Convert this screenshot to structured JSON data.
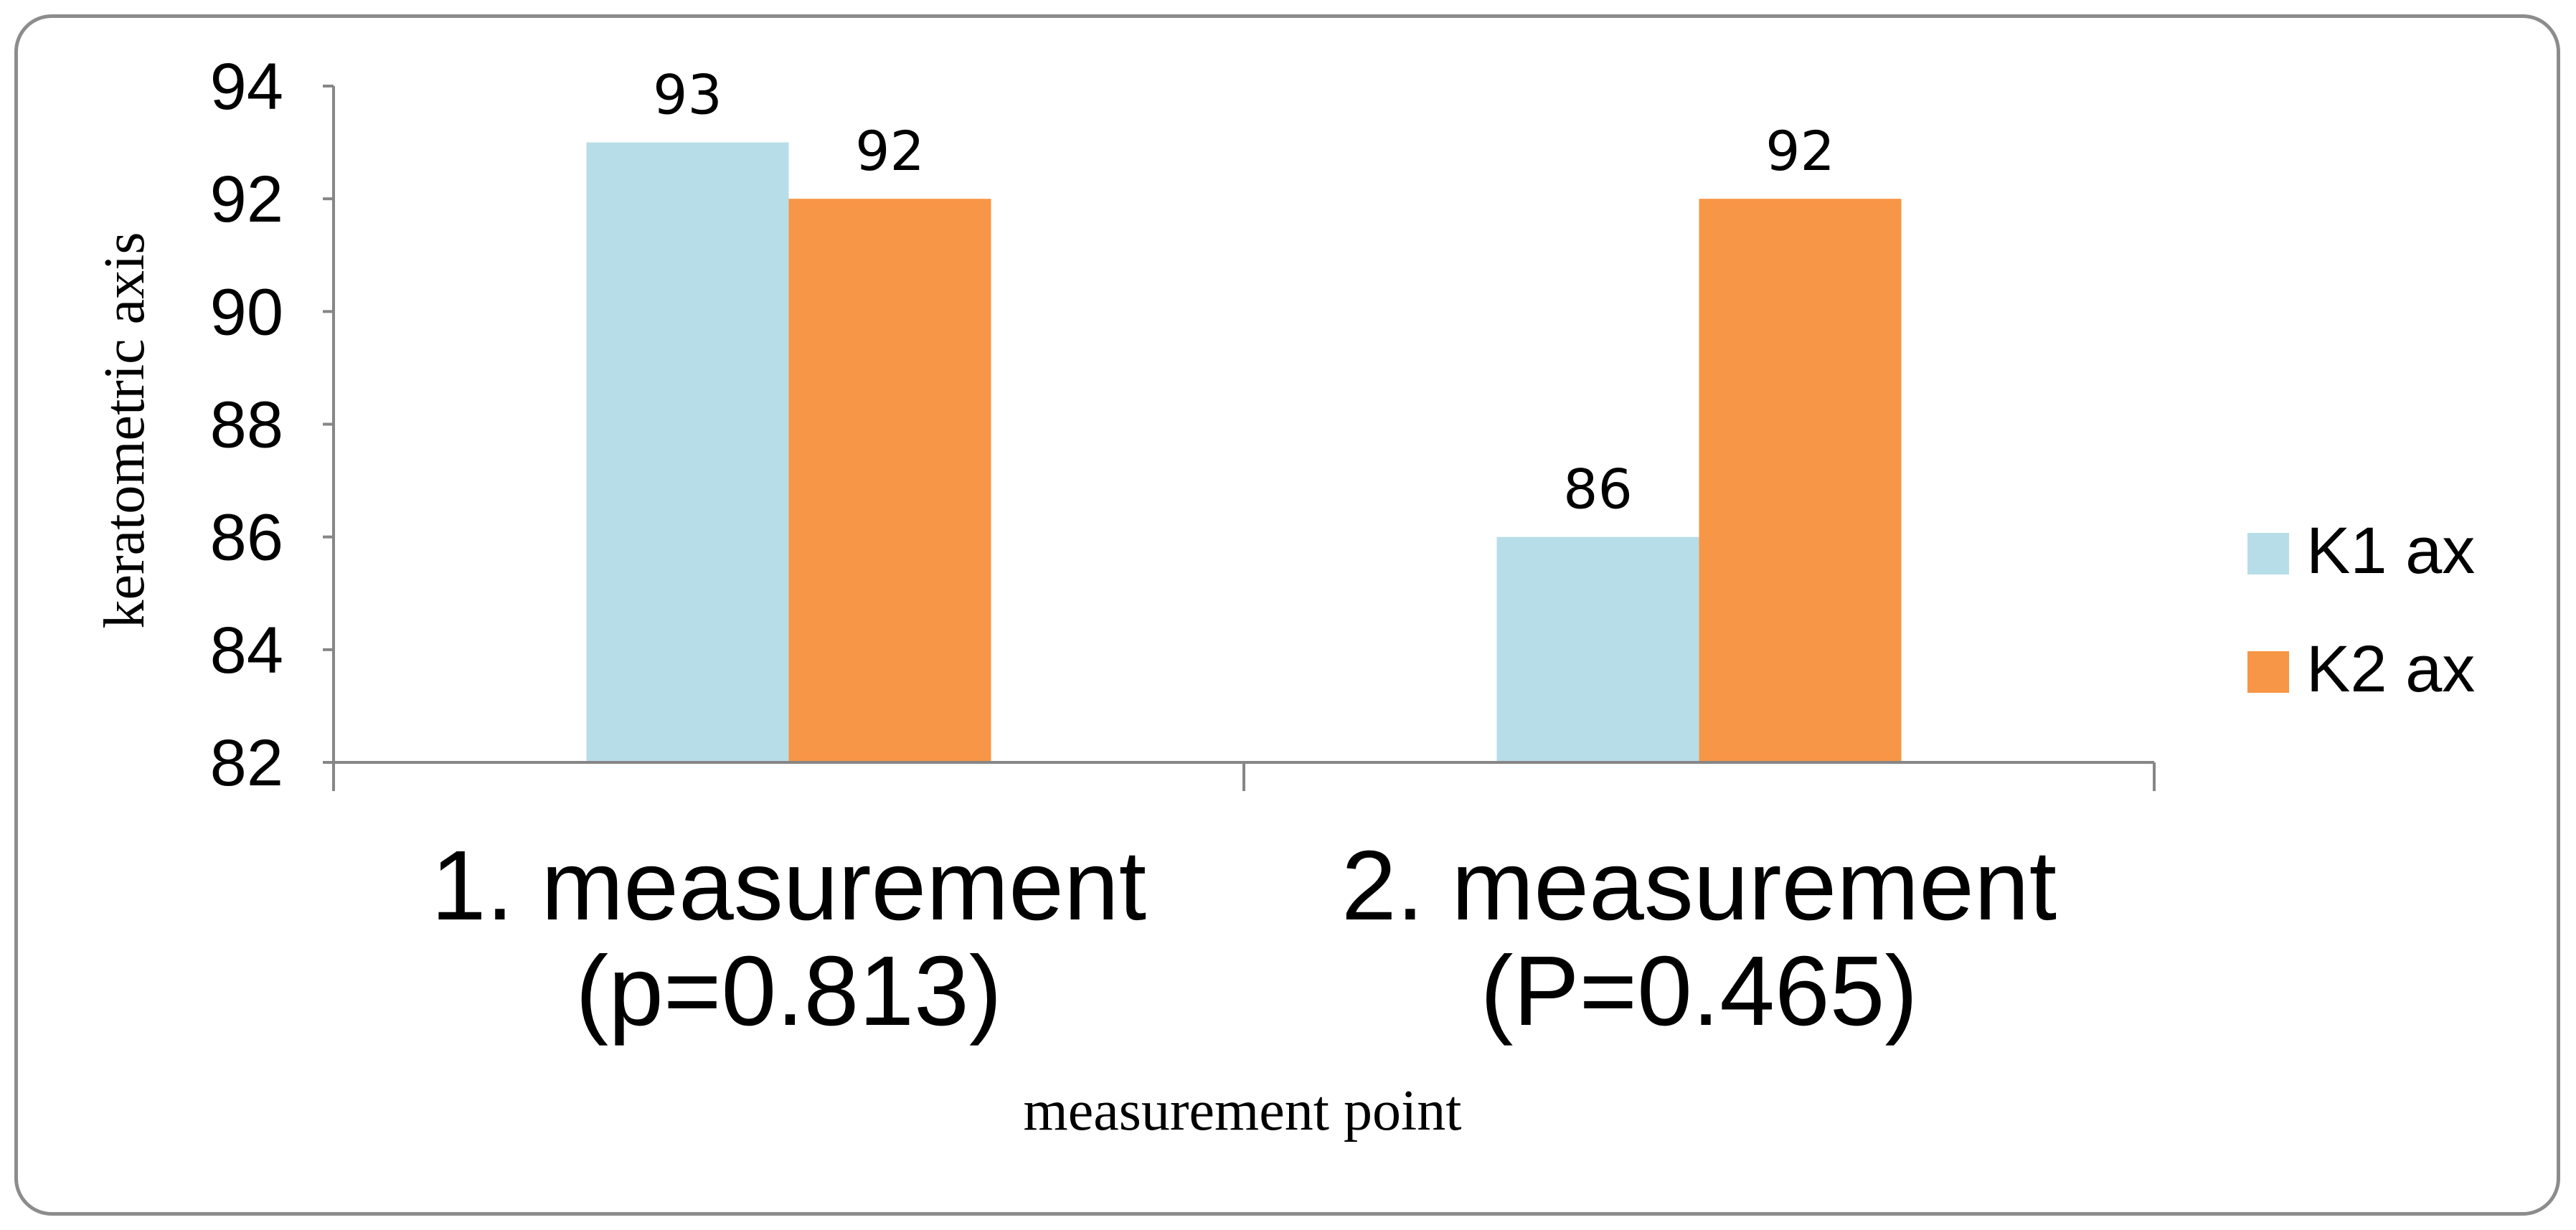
{
  "chart_data": {
    "type": "bar",
    "categories": [
      [
        "1. measurement",
        "(p=0.813)"
      ],
      [
        "2. measurement",
        "(P=0.465)"
      ]
    ],
    "series": [
      {
        "name": "K1 ax",
        "color": "#b7dde8",
        "values": [
          93,
          86
        ]
      },
      {
        "name": "K2 ax",
        "color": "#f79646",
        "values": [
          92,
          92
        ]
      }
    ],
    "data_labels": true,
    "xlabel": "measurement point",
    "ylabel": "keratometric axis",
    "ylim": [
      82,
      94
    ],
    "yticks": [
      82,
      84,
      86,
      88,
      90,
      92,
      94
    ],
    "grid": false,
    "legend_position": "right",
    "axis_color": "#868686",
    "frame_color": "#8c8c8c"
  }
}
